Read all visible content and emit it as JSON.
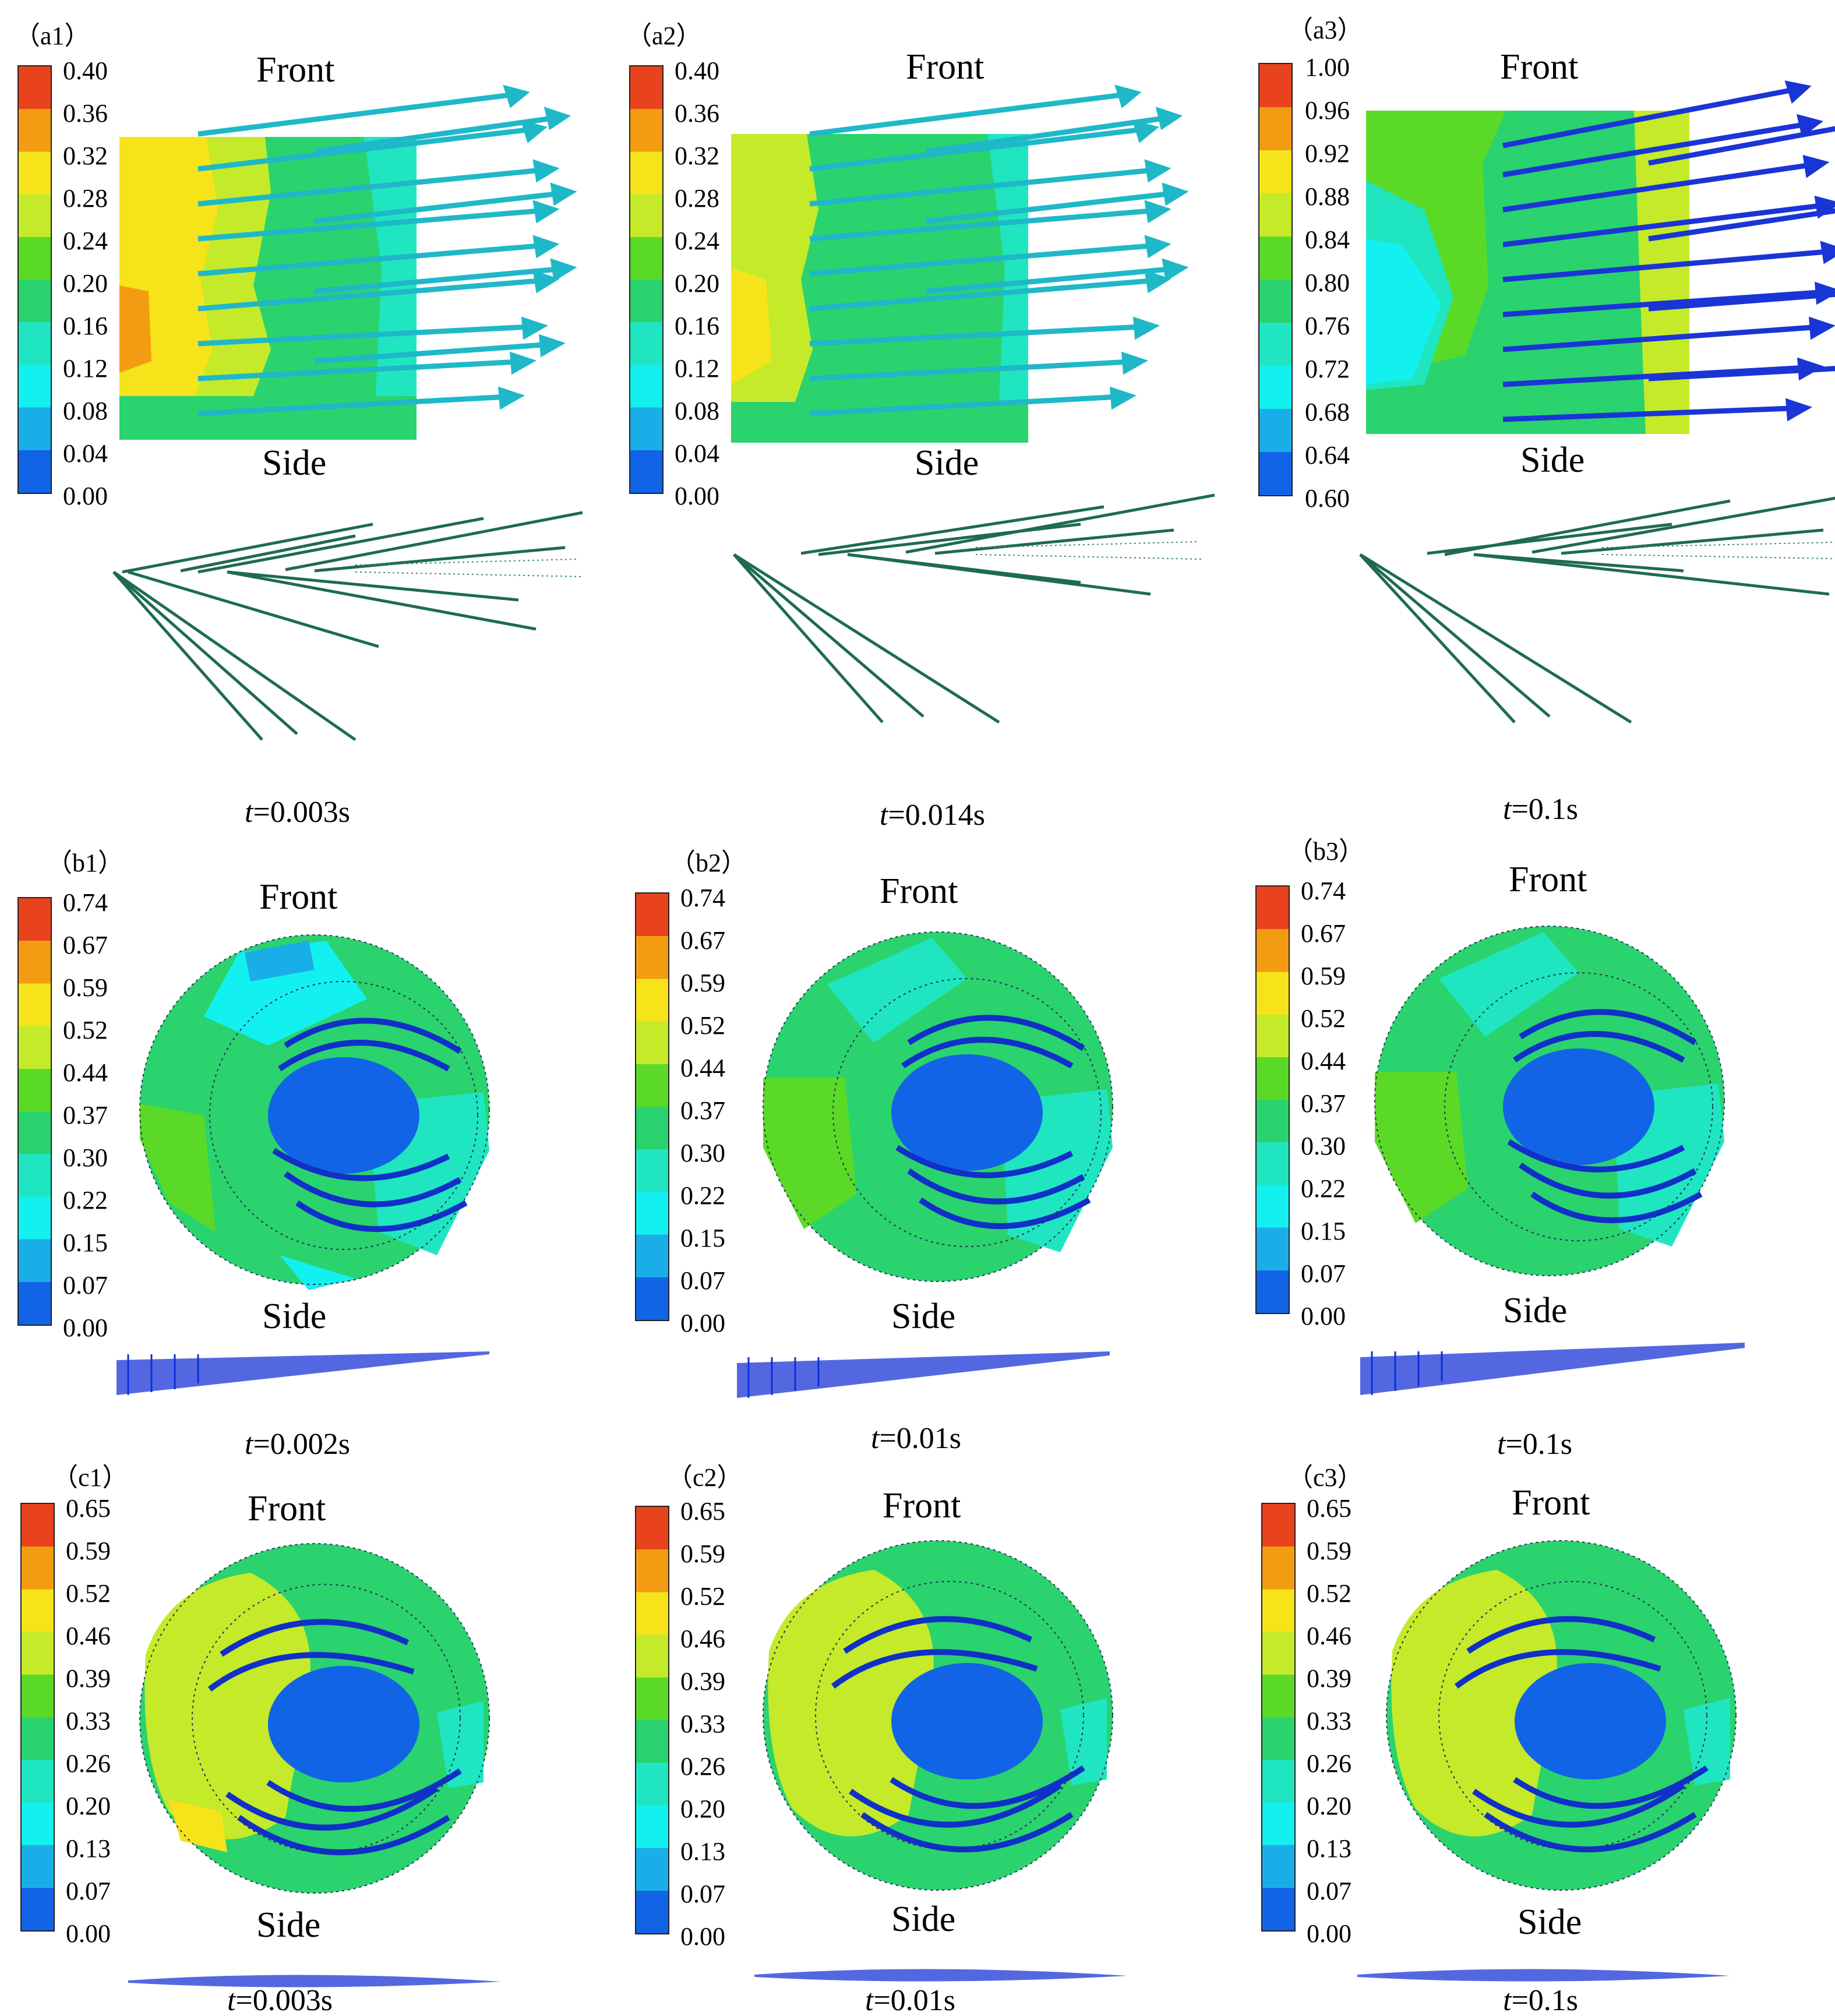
{
  "panels": [
    {
      "id": "a1",
      "label": "（a1）",
      "scale": [
        "0.40",
        "0.36",
        "0.32",
        "0.28",
        "0.24",
        "0.20",
        "0.16",
        "0.12",
        "0.08",
        "0.04",
        "0.00"
      ],
      "front": "Front",
      "side": "Side",
      "time_var": "t",
      "time_val": "=0.003s"
    },
    {
      "id": "a2",
      "label": "（a2）",
      "scale": [
        "0.40",
        "0.36",
        "0.32",
        "0.28",
        "0.24",
        "0.20",
        "0.16",
        "0.12",
        "0.08",
        "0.04",
        "0.00"
      ],
      "front": "Front",
      "side": "Side",
      "time_var": "t",
      "time_val": "=0.014s"
    },
    {
      "id": "a3",
      "label": "（a3）",
      "scale": [
        "1.00",
        "0.96",
        "0.92",
        "0.88",
        "0.84",
        "0.80",
        "0.76",
        "0.72",
        "0.68",
        "0.64",
        "0.60"
      ],
      "front": "Front",
      "side": "Side",
      "time_var": "t",
      "time_val": "=0.1s"
    },
    {
      "id": "b1",
      "label": "（b1）",
      "scale": [
        "0.74",
        "0.67",
        "0.59",
        "0.52",
        "0.44",
        "0.37",
        "0.30",
        "0.22",
        "0.15",
        "0.07",
        "0.00"
      ],
      "front": "Front",
      "side": "Side",
      "time_var": "t",
      "time_val": "=0.002s"
    },
    {
      "id": "b2",
      "label": "（b2）",
      "scale": [
        "0.74",
        "0.67",
        "0.59",
        "0.52",
        "0.44",
        "0.37",
        "0.30",
        "0.22",
        "0.15",
        "0.07",
        "0.00"
      ],
      "front": "Front",
      "side": "Side",
      "time_var": "t",
      "time_val": "=0.01s"
    },
    {
      "id": "b3",
      "label": "（b3）",
      "scale": [
        "0.74",
        "0.67",
        "0.59",
        "0.52",
        "0.44",
        "0.37",
        "0.30",
        "0.22",
        "0.15",
        "0.07",
        "0.00"
      ],
      "front": "Front",
      "side": "Side",
      "time_var": "t",
      "time_val": "=0.1s"
    },
    {
      "id": "c1",
      "label": "（c1）",
      "scale": [
        "0.65",
        "0.59",
        "0.52",
        "0.46",
        "0.39",
        "0.33",
        "0.26",
        "0.20",
        "0.13",
        "0.07",
        "0.00"
      ],
      "front": "Front",
      "side": "Side",
      "time_var": "t",
      "time_val": "=0.003s"
    },
    {
      "id": "c2",
      "label": "（c2）",
      "scale": [
        "0.65",
        "0.59",
        "0.52",
        "0.46",
        "0.39",
        "0.33",
        "0.26",
        "0.20",
        "0.13",
        "0.07",
        "0.00"
      ],
      "front": "Front",
      "side": "Side",
      "time_var": "t",
      "time_val": "=0.01s"
    },
    {
      "id": "c3",
      "label": "（c3）",
      "scale": [
        "0.65",
        "0.59",
        "0.52",
        "0.46",
        "0.39",
        "0.33",
        "0.26",
        "0.20",
        "0.13",
        "0.07",
        "0.00"
      ],
      "front": "Front",
      "side": "Side",
      "time_var": "t",
      "time_val": "=0.1s"
    }
  ],
  "colorbar_colors": [
    "#e8431c",
    "#f39c12",
    "#f6e31a",
    "#c4ea2a",
    "#5ada27",
    "#2ad36d",
    "#1fe6c0",
    "#13f0f0",
    "#1aaee8",
    "#1164e6",
    "#0b2fd8"
  ]
}
